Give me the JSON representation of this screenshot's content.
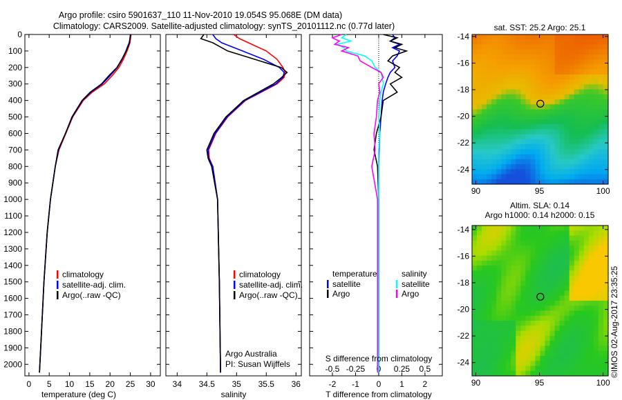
{
  "title_line1": "Argo profile: csiro 5901637_110 11-Nov-2010 19.054S 95.068E (DM data)",
  "title_line2": "Climatology: CARS2009. Satellite-adjusted climatology: synTS_20101112.nc (0.77d later)",
  "copyright": "©IMOS 02-Aug-2017 23:35:25",
  "colors": {
    "climatology": "#ff0000",
    "satellite": "#0000ff",
    "argo": "#000000",
    "sal_satellite": "#00ffff",
    "sal_argo": "#ff00ff"
  },
  "chart_data": [
    {
      "type": "line",
      "xlabel": "temperature (deg C)",
      "ylabel": "pressure",
      "xlim": [
        -1,
        32.4
      ],
      "ylim": [
        2070,
        0
      ],
      "xticks": [
        0,
        5,
        10,
        15,
        20,
        25,
        30
      ],
      "yticks": [
        0,
        100,
        200,
        300,
        400,
        500,
        600,
        700,
        800,
        900,
        1000,
        1100,
        1200,
        1300,
        1400,
        1500,
        1600,
        1700,
        1800,
        1900,
        2000
      ],
      "legend": [
        "climatology",
        "satellite-adj. clim.",
        "Argo(..raw -QC)"
      ],
      "depth": [
        0,
        50,
        100,
        150,
        200,
        250,
        300,
        350,
        400,
        500,
        600,
        700,
        800,
        1000,
        1200,
        1500,
        1800,
        2050
      ],
      "series": [
        {
          "name": "climatology",
          "values": [
            25.2,
            24.9,
            24.2,
            23.3,
            22.2,
            20.5,
            18.6,
            15.6,
            13.4,
            10.8,
            9.1,
            7.4,
            6.5,
            5.3,
            4.5,
            3.7,
            3.1,
            2.6
          ]
        },
        {
          "name": "satellite-adj. clim.",
          "values": [
            25.1,
            24.7,
            23.9,
            23.0,
            21.8,
            20.0,
            18.1,
            15.3,
            13.2,
            10.7,
            9.0,
            7.3,
            6.5,
            5.3,
            4.5,
            3.7,
            3.1,
            2.6
          ]
        },
        {
          "name": "Argo(..raw -QC)",
          "values": [
            25.0,
            24.8,
            24.0,
            22.9,
            21.7,
            19.7,
            17.9,
            15.1,
            13.1,
            10.6,
            9.0,
            7.2,
            6.5,
            5.3,
            4.5,
            3.7,
            3.1,
            2.6
          ]
        }
      ]
    },
    {
      "type": "line",
      "xlabel": "salinity",
      "xlim": [
        33.81,
        36.09
      ],
      "ylim": [
        2070,
        0
      ],
      "xticks": [
        34,
        34.5,
        35,
        35.5,
        36
      ],
      "legend": [
        "climatology",
        "satellite-adj. clim.",
        "Argo(..raw -QC)"
      ],
      "annotation": [
        "Argo Australia",
        "PI: Susan Wijffels"
      ],
      "depth": [
        0,
        25,
        50,
        100,
        150,
        200,
        230,
        260,
        300,
        400,
        500,
        600,
        700,
        750,
        800,
        1000,
        1500,
        2050
      ],
      "series": [
        {
          "name": "climatology",
          "values": [
            34.95,
            35.05,
            35.2,
            35.5,
            35.68,
            35.78,
            35.82,
            35.8,
            35.68,
            35.15,
            34.85,
            34.65,
            34.53,
            34.54,
            34.6,
            34.68,
            34.71,
            34.73
          ]
        },
        {
          "name": "satellite-adj. clim.",
          "values": [
            34.6,
            34.65,
            34.75,
            35.1,
            35.45,
            35.72,
            35.8,
            35.78,
            35.66,
            35.14,
            34.84,
            34.64,
            34.52,
            34.53,
            34.6,
            34.68,
            34.71,
            34.73
          ]
        },
        {
          "name": "Argo(..raw -QC)",
          "values": [
            34.45,
            34.4,
            34.6,
            34.85,
            35.3,
            35.75,
            35.85,
            35.76,
            35.62,
            35.12,
            34.82,
            34.62,
            34.5,
            34.52,
            34.58,
            34.68,
            34.71,
            34.73
          ]
        }
      ]
    },
    {
      "type": "line",
      "xlabel": "T difference from climatology",
      "xlabel_top": "S difference from climatology",
      "xlim": [
        -2.985,
        2.75
      ],
      "ylim": [
        2070,
        0
      ],
      "xticks": [
        -2,
        -1,
        0,
        1,
        2
      ],
      "xticks_S": [
        "-0.5",
        "-0.25",
        "0",
        "0.25",
        "0.5"
      ],
      "legend_headers": [
        "temperature",
        "salinity"
      ],
      "legend": [
        "satellite",
        "Argo",
        "satellite",
        "Argo"
      ],
      "depth": [
        0,
        20,
        40,
        60,
        80,
        100,
        130,
        160,
        200,
        230,
        260,
        300,
        350,
        400,
        500,
        600,
        700,
        800,
        1000,
        1500,
        2050
      ],
      "series": [
        {
          "name": "temperature satellite",
          "values": [
            0.6,
            0.7,
            0.5,
            0.9,
            0.6,
            0.9,
            0.8,
            0.6,
            0.7,
            0.5,
            0.4,
            0.3,
            0.2,
            0.15,
            0.1,
            0.05,
            0.02,
            0.0,
            0.0,
            0.0,
            0.0
          ]
        },
        {
          "name": "temperature Argo",
          "values": [
            0.2,
            0.8,
            0.5,
            1.0,
            0.7,
            1.2,
            0.6,
            0.4,
            0.9,
            0.7,
            1.0,
            0.5,
            0.8,
            0.2,
            0.1,
            -0.1,
            -0.2,
            -0.05,
            0.0,
            0.0,
            0.0
          ]
        },
        {
          "name": "salinity satellite",
          "values": [
            -1.4,
            -1.6,
            -1.2,
            -1.8,
            -1.5,
            -1.4,
            -0.6,
            -0.3,
            -0.15,
            0.1,
            0.15,
            0.2,
            0.1,
            0.05,
            0.0,
            0.05,
            0.0,
            0.0,
            0.0,
            0.0,
            0.0
          ]
        },
        {
          "name": "salinity Argo",
          "values": [
            -1.6,
            -2.0,
            -1.7,
            -1.9,
            -1.3,
            -1.6,
            -0.9,
            -0.8,
            -0.3,
            0.1,
            0.2,
            0.0,
            0.05,
            -0.05,
            -0.1,
            -0.2,
            -0.15,
            -0.3,
            -0.05,
            -0.05,
            -0.05
          ]
        }
      ]
    },
    {
      "type": "heatmap",
      "title": "sat. SST: 25.2 Argo: 25.1",
      "xlim": [
        89.7,
        100.4
      ],
      "ylim": [
        -25.1,
        -13.85
      ],
      "xticks": [
        90,
        95,
        100
      ],
      "yticks": [
        -14,
        -16,
        -18,
        -20,
        -22,
        -24
      ],
      "marker": {
        "lon": 95.068,
        "lat": -19.054
      }
    },
    {
      "type": "heatmap",
      "title": "Altim. SLA: 0.14",
      "subtitle": "Argo h1000: 0.14 h2000: 0.15",
      "xlim": [
        89.7,
        100.4
      ],
      "ylim": [
        -25.0,
        -13.7
      ],
      "xticks": [
        90,
        95,
        100
      ],
      "yticks": [
        -14,
        -16,
        -18,
        -20,
        -22,
        -24
      ],
      "marker": {
        "lon": 95.068,
        "lat": -19.054
      }
    }
  ]
}
